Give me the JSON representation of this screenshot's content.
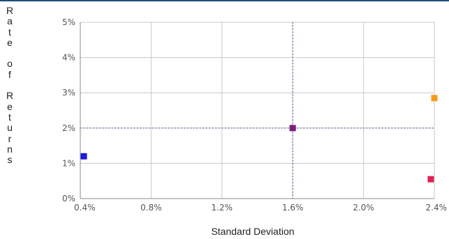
{
  "chart_data": {
    "type": "scatter",
    "xlabel": "Standard Deviation",
    "ylabel": "Rate of Returns",
    "xlim": [
      0.4,
      2.4
    ],
    "ylim": [
      0,
      5
    ],
    "x_ticks": [
      "0.4%",
      "0.8%",
      "1.2%",
      "1.6%",
      "2.0%",
      "2.4%"
    ],
    "y_ticks": [
      "0%",
      "1%",
      "2%",
      "3%",
      "4%",
      "5%"
    ],
    "grid": true,
    "reference_lines": {
      "x": 1.6,
      "y": 2.0,
      "style": "dotted",
      "color": "#4a4aa0"
    },
    "points": [
      {
        "x": 0.42,
        "y": 1.2,
        "color": "#1a1adc"
      },
      {
        "x": 1.6,
        "y": 2.0,
        "color": "#7b1d7b"
      },
      {
        "x": 2.4,
        "y": 2.85,
        "color": "#f59a1a"
      },
      {
        "x": 2.38,
        "y": 0.55,
        "color": "#e02050"
      }
    ]
  }
}
